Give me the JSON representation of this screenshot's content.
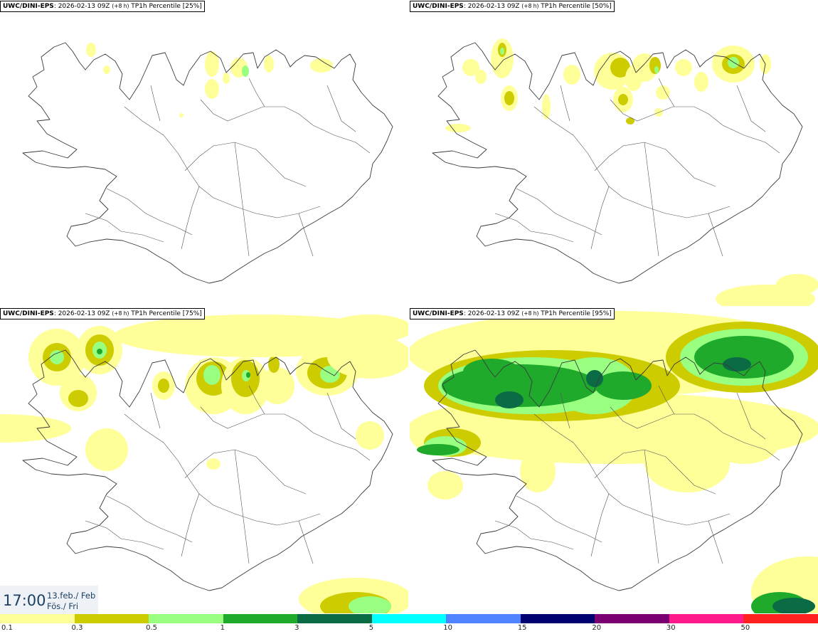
{
  "panels": [
    {
      "model": "UWC/DINI-EPS",
      "run": ": 2026-02-13 09Z",
      "lead": "(+8 h)",
      "product": "TP1h Percentile [25%]"
    },
    {
      "model": "UWC/DINI-EPS",
      "run": ": 2026-02-13 09Z",
      "lead": "(+8 h)",
      "product": "TP1h Percentile [50%]"
    },
    {
      "model": "UWC/DINI-EPS",
      "run": ": 2026-02-13 09Z",
      "lead": "(+8 h)",
      "product": "TP1h Percentile [75%]"
    },
    {
      "model": "UWC/DINI-EPS",
      "run": ": 2026-02-13 09Z",
      "lead": "(+8 h)",
      "product": "TP1h Percentile [95%]"
    }
  ],
  "valid_time": {
    "time": "17:00",
    "date_line1": "13.feb./ Feb",
    "date_line2": "Fös./ Fri"
  },
  "legend": {
    "ticks": [
      "0.1",
      "0.3",
      "0.5",
      "1",
      "3",
      "5",
      "10",
      "15",
      "20",
      "30",
      "50"
    ],
    "colors": [
      "#ffff99",
      "#cccc00",
      "#99ff80",
      "#1faa2c",
      "#0a6b45",
      "#00ffff",
      "#4f83ff",
      "#000070",
      "#7a0072",
      "#ff1a8c",
      "#ff2020"
    ]
  },
  "colors": {
    "precip_light": "#ffff99",
    "precip_low": "#cccc00",
    "precip_mid": "#99ff80",
    "precip_high": "#1faa2c",
    "precip_vhigh": "#0a6b45",
    "coast": "#3a3a3a"
  }
}
